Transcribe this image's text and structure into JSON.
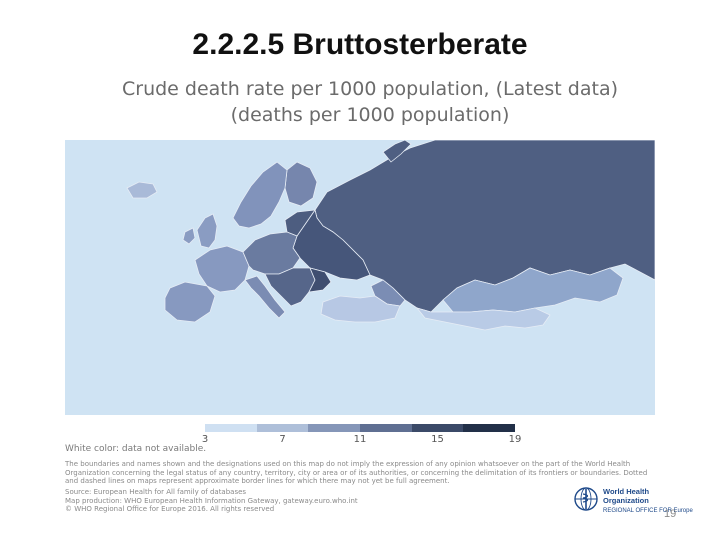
{
  "slide": {
    "title": "2.2.2.5 Bruttosterberate",
    "page_number": "19"
  },
  "map": {
    "title_line1": "Crude death rate per 1000 population, (Latest data)",
    "title_line2": "(deaths per 1000 population)",
    "ocean_color": "#cfe3f3",
    "legend": {
      "ticks": [
        "3",
        "7",
        "11",
        "15",
        "19"
      ],
      "colors": [
        "#cfe0f2",
        "#aebfd9",
        "#8596b8",
        "#5f6f92",
        "#3b4a68",
        "#223048"
      ]
    },
    "regions": [
      {
        "name": "russia",
        "value": 13.0,
        "color": "#4f5f82"
      },
      {
        "name": "kazakhstan",
        "value": 8.5,
        "color": "#8fa6cb"
      },
      {
        "name": "central-asia",
        "value": 5.5,
        "color": "#b9cbe6"
      },
      {
        "name": "ukraine-belarus",
        "value": 14.5,
        "color": "#46567a"
      },
      {
        "name": "baltics",
        "value": 13.5,
        "color": "#4d5d80"
      },
      {
        "name": "scandinavia",
        "value": 9.0,
        "color": "#8193bb"
      },
      {
        "name": "finland",
        "value": 9.5,
        "color": "#7686ad"
      },
      {
        "name": "western-europe",
        "value": 9.0,
        "color": "#8799c0"
      },
      {
        "name": "iberia",
        "value": 9.0,
        "color": "#8799c0"
      },
      {
        "name": "central-europe",
        "value": 11.0,
        "color": "#6a7ba0"
      },
      {
        "name": "balkans",
        "value": 13.0,
        "color": "#56668a"
      },
      {
        "name": "bulgaria",
        "value": 15.0,
        "color": "#3f4e70"
      },
      {
        "name": "turkey",
        "value": 5.5,
        "color": "#b7c8e4"
      },
      {
        "name": "caucasus",
        "value": 9.0,
        "color": "#7b8db4"
      },
      {
        "name": "uk-ireland",
        "value": 9.0,
        "color": "#8a9cc2"
      },
      {
        "name": "iceland",
        "value": 6.5,
        "color": "#a9bad8"
      },
      {
        "name": "italy",
        "value": 10.0,
        "color": "#7b8cb3"
      }
    ],
    "no_data_note": "White color: data not available.",
    "disclaimer": "The boundaries and names shown and the designations used on this map do not imply the expression of any opinion whatsoever on the part of the World Health Organization concerning the legal status of any country, territory, city or area or of its authorities, or concerning the delimitation of its frontiers or boundaries. Dotted and dashed lines on maps represent approximate border lines for which there may not yet be full agreement.",
    "source_line1": "Source: European Health for All family of databases",
    "source_line2": "Map production: WHO European Health Information Gateway, gateway.euro.who.int",
    "source_line3": "© WHO Regional Office for Europe 2016. All rights reserved"
  },
  "who_logo": {
    "name_line1": "World Health",
    "name_line2": "Organization",
    "region": "REGIONAL OFFICE FOR Europe"
  }
}
